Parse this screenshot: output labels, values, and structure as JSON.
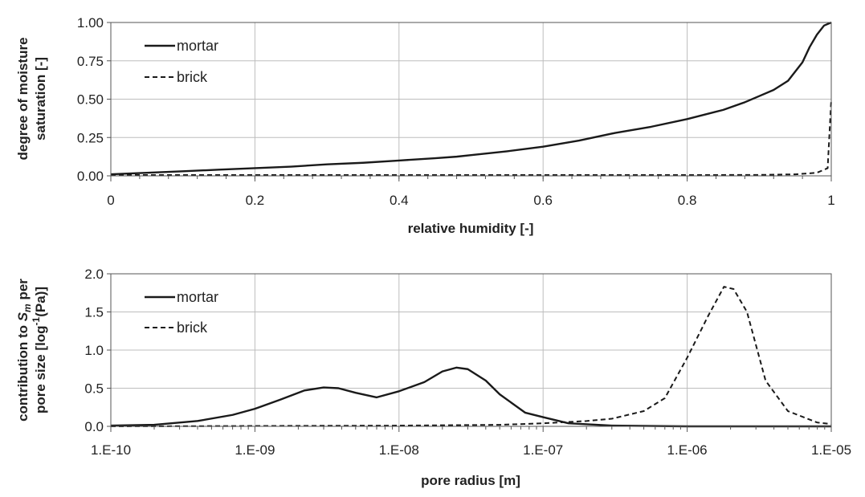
{
  "chart_data": [
    {
      "type": "line",
      "xlabel": "relative humidity [-]",
      "ylabel_lines": [
        "degree of moisture",
        "saturation [-]"
      ],
      "xlim": [
        0,
        1
      ],
      "ylim": [
        0,
        1
      ],
      "x_scale": "linear",
      "x_ticks": [
        0,
        0.2,
        0.4,
        0.6,
        0.8,
        1
      ],
      "x_tick_labels": [
        "0",
        "0.2",
        "0.4",
        "0.6",
        "0.8",
        "1"
      ],
      "y_ticks": [
        0,
        0.25,
        0.5,
        0.75,
        1
      ],
      "y_tick_labels": [
        "0.00",
        "0.25",
        "0.50",
        "0.75",
        "1.00"
      ],
      "grid": true,
      "legend_position": "top-left",
      "series": [
        {
          "name": "mortar",
          "style": "solid",
          "points": [
            [
              0,
              0.01
            ],
            [
              0.05,
              0.02
            ],
            [
              0.1,
              0.03
            ],
            [
              0.15,
              0.04
            ],
            [
              0.2,
              0.05
            ],
            [
              0.25,
              0.06
            ],
            [
              0.3,
              0.075
            ],
            [
              0.35,
              0.085
            ],
            [
              0.4,
              0.1
            ],
            [
              0.45,
              0.115
            ],
            [
              0.48,
              0.125
            ],
            [
              0.5,
              0.135
            ],
            [
              0.55,
              0.16
            ],
            [
              0.6,
              0.19
            ],
            [
              0.65,
              0.23
            ],
            [
              0.7,
              0.28
            ],
            [
              0.75,
              0.32
            ],
            [
              0.8,
              0.37
            ],
            [
              0.85,
              0.43
            ],
            [
              0.88,
              0.48
            ],
            [
              0.9,
              0.52
            ],
            [
              0.92,
              0.56
            ],
            [
              0.94,
              0.62
            ],
            [
              0.96,
              0.74
            ],
            [
              0.97,
              0.84
            ],
            [
              0.98,
              0.92
            ],
            [
              0.99,
              0.98
            ],
            [
              1,
              1
            ]
          ]
        },
        {
          "name": "brick",
          "style": "dashed",
          "points": [
            [
              0,
              0.005
            ],
            [
              0.2,
              0.005
            ],
            [
              0.4,
              0.005
            ],
            [
              0.6,
              0.005
            ],
            [
              0.8,
              0.005
            ],
            [
              0.9,
              0.006
            ],
            [
              0.95,
              0.01
            ],
            [
              0.98,
              0.02
            ],
            [
              0.995,
              0.05
            ],
            [
              1,
              0.5
            ]
          ]
        }
      ]
    },
    {
      "type": "line",
      "xlabel": "pore radius [m]",
      "ylabel_lines": [
        "contribution to S_m per",
        "pore size [log⁻¹(Pa)]"
      ],
      "xlim": [
        1e-10,
        1e-05
      ],
      "ylim": [
        0,
        2
      ],
      "x_scale": "log",
      "x_ticks": [
        1e-10,
        1e-09,
        1e-08,
        1e-07,
        1e-06,
        1e-05
      ],
      "x_tick_labels": [
        "1.E-10",
        "1.E-09",
        "1.E-08",
        "1.E-07",
        "1.E-06",
        "1.E-05"
      ],
      "y_ticks": [
        0,
        0.5,
        1,
        1.5,
        2
      ],
      "y_tick_labels": [
        "0.0",
        "0.5",
        "1.0",
        "1.5",
        "2.0"
      ],
      "grid": true,
      "legend_position": "top-left",
      "series": [
        {
          "name": "mortar",
          "style": "solid",
          "points": [
            [
              1e-10,
              0.01
            ],
            [
              2e-10,
              0.02
            ],
            [
              4e-10,
              0.07
            ],
            [
              7e-10,
              0.15
            ],
            [
              1e-09,
              0.23
            ],
            [
              1.5e-09,
              0.35
            ],
            [
              2.2e-09,
              0.47
            ],
            [
              3e-09,
              0.51
            ],
            [
              3.8e-09,
              0.5
            ],
            [
              5e-09,
              0.44
            ],
            [
              7e-09,
              0.38
            ],
            [
              1e-08,
              0.46
            ],
            [
              1.5e-08,
              0.58
            ],
            [
              2e-08,
              0.72
            ],
            [
              2.5e-08,
              0.77
            ],
            [
              3e-08,
              0.75
            ],
            [
              4e-08,
              0.6
            ],
            [
              5e-08,
              0.42
            ],
            [
              7.5e-08,
              0.18
            ],
            [
              1e-07,
              0.12
            ],
            [
              1.5e-07,
              0.04
            ],
            [
              3e-07,
              0.01
            ],
            [
              1e-06,
              0
            ],
            [
              1e-05,
              0
            ]
          ]
        },
        {
          "name": "brick",
          "style": "dashed",
          "points": [
            [
              1e-10,
              0
            ],
            [
              1e-08,
              0.01
            ],
            [
              5e-08,
              0.02
            ],
            [
              1e-07,
              0.04
            ],
            [
              2e-07,
              0.07
            ],
            [
              3e-07,
              0.1
            ],
            [
              5e-07,
              0.2
            ],
            [
              7e-07,
              0.37
            ],
            [
              1e-06,
              0.9
            ],
            [
              1.4e-06,
              1.45
            ],
            [
              1.8e-06,
              1.83
            ],
            [
              2.1e-06,
              1.8
            ],
            [
              2.6e-06,
              1.5
            ],
            [
              3.5e-06,
              0.6
            ],
            [
              5e-06,
              0.2
            ],
            [
              8e-06,
              0.05
            ],
            [
              1e-05,
              0.03
            ]
          ]
        }
      ]
    }
  ]
}
